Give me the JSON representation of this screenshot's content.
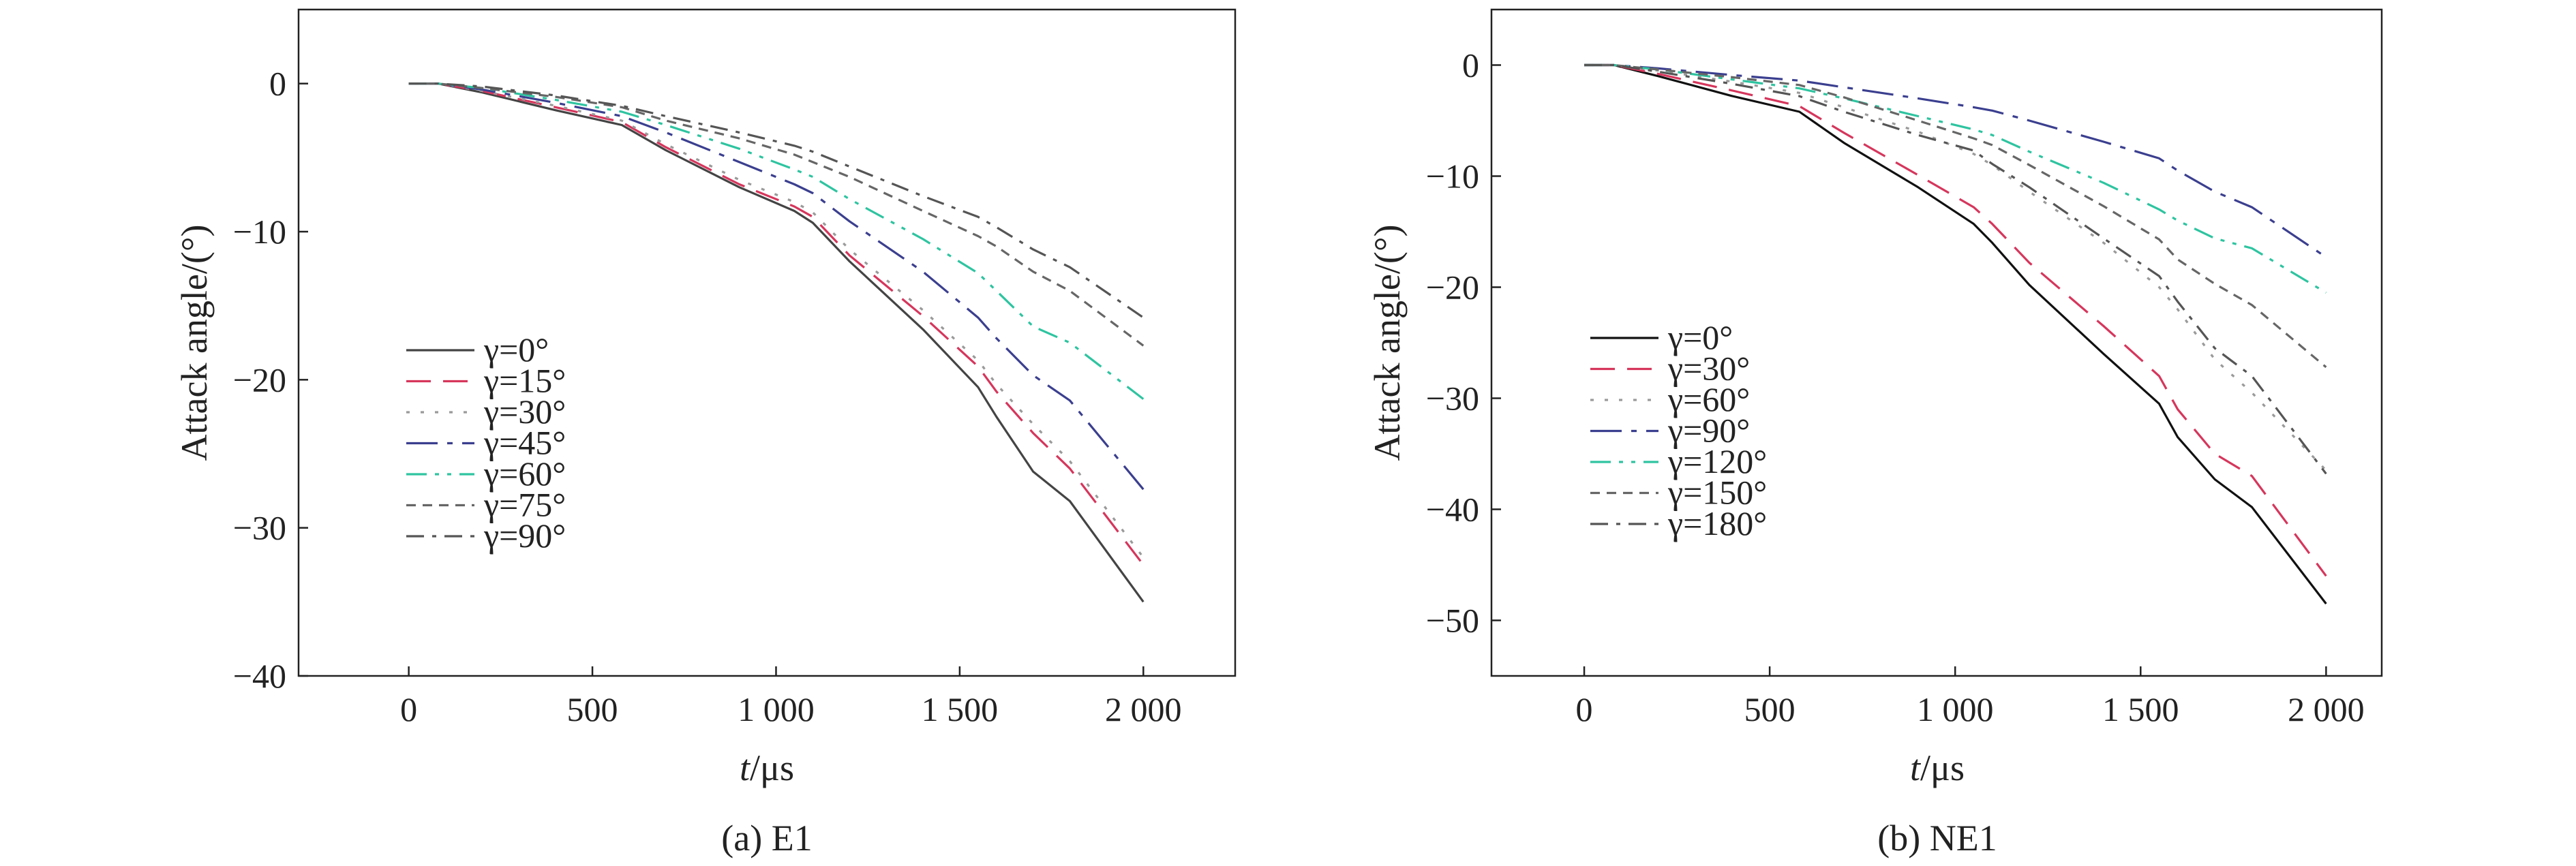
{
  "chart_data": [
    {
      "type": "line",
      "caption": "(a) E1",
      "xlabel_var": "t",
      "xlabel_unit": "/μs",
      "ylabel": "Attack angle/(°)",
      "xlim": [
        -300,
        2250
      ],
      "ylim": [
        -40,
        5
      ],
      "xticks": [
        0,
        500,
        1000,
        1500,
        2000
      ],
      "xtick_labels": [
        "0",
        "500",
        "1 000",
        "1 500",
        "2 000"
      ],
      "yticks": [
        0,
        -10,
        -20,
        -30,
        -40
      ],
      "ytick_labels": [
        "0",
        "−10",
        "−20",
        "−30",
        "−40"
      ],
      "grid": false,
      "legend_position": "lower-left",
      "x": [
        0,
        80,
        200,
        400,
        580,
        700,
        900,
        1050,
        1100,
        1200,
        1400,
        1550,
        1600,
        1700,
        1800,
        2000
      ],
      "series": [
        {
          "name": "γ=0°",
          "color": "#444444",
          "dash": "solid",
          "values": [
            0,
            0,
            -0.6,
            -1.8,
            -2.8,
            -4.5,
            -7.0,
            -8.6,
            -9.4,
            -12.0,
            -16.6,
            -20.5,
            -22.5,
            -26.2,
            -28.2,
            -35.0
          ]
        },
        {
          "name": "γ=15°",
          "color": "#d6365c",
          "dash": "dash",
          "values": [
            0,
            0,
            -0.5,
            -1.6,
            -2.6,
            -4.3,
            -6.8,
            -8.3,
            -9.0,
            -11.6,
            -15.7,
            -19.1,
            -20.8,
            -23.6,
            -26.0,
            -32.5
          ]
        },
        {
          "name": "γ=30°",
          "color": "#9a9a9a",
          "dash": "dot",
          "values": [
            0,
            0,
            -0.5,
            -1.5,
            -2.5,
            -4.1,
            -6.5,
            -8.0,
            -8.7,
            -11.2,
            -15.3,
            -18.7,
            -20.3,
            -23.0,
            -25.5,
            -32.0
          ]
        },
        {
          "name": "γ=45°",
          "color": "#3b3f8f",
          "dash": "dashdot-long",
          "values": [
            0,
            0,
            -0.4,
            -1.3,
            -2.2,
            -3.3,
            -5.3,
            -6.8,
            -7.4,
            -9.3,
            -12.7,
            -15.8,
            -17.2,
            -19.7,
            -21.4,
            -27.4
          ]
        },
        {
          "name": "γ=60°",
          "color": "#2ec4a0",
          "dash": "dashdotdot",
          "values": [
            0,
            0,
            -0.3,
            -1.1,
            -1.9,
            -2.8,
            -4.4,
            -5.8,
            -6.3,
            -7.8,
            -10.5,
            -12.8,
            -14.0,
            -16.4,
            -17.5,
            -21.3
          ]
        },
        {
          "name": "γ=75°",
          "color": "#666666",
          "dash": "shortdash",
          "values": [
            0,
            0,
            -0.3,
            -0.9,
            -1.6,
            -2.5,
            -3.7,
            -4.8,
            -5.3,
            -6.3,
            -8.6,
            -10.3,
            -11.0,
            -12.7,
            -14.0,
            -17.7
          ]
        },
        {
          "name": "γ=90°",
          "color": "#555555",
          "dash": "dashdot",
          "values": [
            0,
            0,
            -0.2,
            -0.8,
            -1.5,
            -2.2,
            -3.3,
            -4.2,
            -4.6,
            -5.6,
            -7.6,
            -9.0,
            -9.7,
            -11.2,
            -12.4,
            -15.8
          ]
        }
      ]
    },
    {
      "type": "line",
      "caption": "(b) NE1",
      "xlabel_var": "t",
      "xlabel_unit": "/μs",
      "ylabel": "Attack angle/(°)",
      "xlim": [
        -250,
        2150
      ],
      "ylim": [
        -55,
        5
      ],
      "xticks": [
        0,
        500,
        1000,
        1500,
        2000
      ],
      "xtick_labels": [
        "0",
        "500",
        "1 000",
        "1 500",
        "2 000"
      ],
      "yticks": [
        0,
        -10,
        -20,
        -30,
        -40,
        -50
      ],
      "ytick_labels": [
        "0",
        "−10",
        "−20",
        "−30",
        "−40",
        "−50"
      ],
      "grid": false,
      "legend_position": "lower-left",
      "x": [
        0,
        80,
        200,
        400,
        580,
        700,
        900,
        1050,
        1100,
        1200,
        1400,
        1550,
        1600,
        1700,
        1800,
        2000
      ],
      "series": [
        {
          "name": "γ=0°",
          "color": "#111111",
          "dash": "solid",
          "values": [
            0,
            0,
            -1.0,
            -2.8,
            -4.2,
            -7.0,
            -11.0,
            -14.3,
            -16.0,
            -19.8,
            -26.0,
            -30.5,
            -33.5,
            -37.3,
            -39.8,
            -48.5
          ]
        },
        {
          "name": "γ=30°",
          "color": "#d6365c",
          "dash": "dash",
          "values": [
            0,
            0,
            -0.8,
            -2.3,
            -3.7,
            -6.1,
            -9.9,
            -12.8,
            -14.3,
            -17.8,
            -23.5,
            -28.0,
            -31.0,
            -35.0,
            -37.0,
            -46.0
          ]
        },
        {
          "name": "γ=60°",
          "color": "#9a9a9a",
          "dash": "dot",
          "values": [
            0,
            0,
            -0.5,
            -1.5,
            -2.5,
            -3.8,
            -6.0,
            -8.0,
            -9.0,
            -11.4,
            -16.0,
            -20.0,
            -22.0,
            -26.5,
            -29.5,
            -36.5
          ]
        },
        {
          "name": "γ=90°",
          "color": "#3b3f8f",
          "dash": "dashdot-long",
          "values": [
            0,
            0,
            -0.3,
            -0.9,
            -1.4,
            -2.0,
            -3.0,
            -3.8,
            -4.1,
            -5.0,
            -6.9,
            -8.4,
            -9.5,
            -11.4,
            -12.8,
            -17.3
          ]
        },
        {
          "name": "γ=120°",
          "color": "#2ec4a0",
          "dash": "dashdotdot",
          "values": [
            0,
            0,
            -0.4,
            -1.3,
            -2.1,
            -3.0,
            -4.6,
            -5.8,
            -6.3,
            -7.8,
            -10.6,
            -13.0,
            -14.0,
            -15.6,
            -16.5,
            -20.5
          ]
        },
        {
          "name": "γ=150°",
          "color": "#666666",
          "dash": "shortdash",
          "values": [
            0,
            0,
            -0.4,
            -1.1,
            -1.8,
            -2.9,
            -5.0,
            -6.6,
            -7.2,
            -9.0,
            -12.7,
            -15.7,
            -17.5,
            -19.7,
            -21.6,
            -27.2
          ]
        },
        {
          "name": "γ=180°",
          "color": "#555555",
          "dash": "dashdot",
          "values": [
            0,
            0,
            -0.6,
            -1.7,
            -2.8,
            -4.2,
            -6.3,
            -7.7,
            -8.9,
            -11.0,
            -15.6,
            -19.0,
            -21.3,
            -25.5,
            -28.0,
            -36.8
          ]
        }
      ]
    }
  ]
}
